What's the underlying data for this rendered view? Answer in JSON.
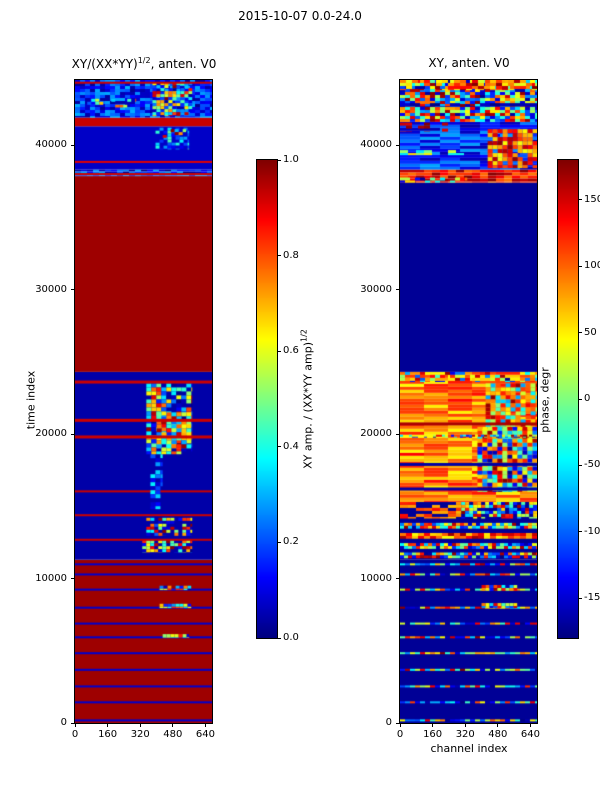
{
  "figure_title": "2015-10-07 0.0-24.0",
  "left_panel": {
    "title_base": "XY/(XX*YY)",
    "title_sup": "1/2",
    "title_rest": ", anten. V0",
    "ylabel": "time index",
    "xtick_labels": [
      "0",
      "160",
      "320",
      "480",
      "640"
    ],
    "ytick_labels": [
      "0",
      "10000",
      "20000",
      "30000",
      "40000"
    ]
  },
  "right_panel": {
    "title": "XY, anten. V0",
    "xlabel": "channel index",
    "xtick_labels": [
      "0",
      "160",
      "320",
      "480",
      "640"
    ],
    "ytick_labels": [
      "0",
      "10000",
      "20000",
      "30000",
      "40000"
    ]
  },
  "left_colorbar": {
    "label_base": "XY amp. / (XX*YY amp)",
    "label_sup": "1/2",
    "tick_labels": [
      "0.0",
      "0.2",
      "0.4",
      "0.6",
      "0.8",
      "1.0"
    ]
  },
  "right_colorbar": {
    "label": "phase, degr",
    "tick_labels": [
      "-150",
      "-100",
      "-50",
      "0",
      "50",
      "100",
      "150"
    ]
  },
  "chart_data": [
    {
      "type": "heatmap",
      "title": "XY/(XX*YY)^{1/2}, anten. V0",
      "xlabel": "",
      "ylabel": "time index",
      "colormap": "jet",
      "grid": false,
      "x_range": [
        0,
        672
      ],
      "t_range": [
        0,
        44500
      ],
      "xticks": [
        0,
        160,
        320,
        480,
        640
      ],
      "yticks": [
        0,
        10000,
        20000,
        30000,
        40000
      ],
      "value_range": [
        0.0,
        1.0
      ],
      "colorbar_label": "XY amp. / (XX*YY amp)^{1/2}",
      "colorbar_ticks": [
        0.0,
        0.2,
        0.4,
        0.6,
        0.8,
        1.0
      ],
      "seed": 11,
      "bands": [
        {
          "t0": 0,
          "t1": 11300,
          "pattern": "solid",
          "v": 0.97,
          "overlays": [
            {
              "type": "hlines",
              "times": [
                250,
                1500,
                2600,
                3750,
                4900,
                6000,
                6950,
                8050,
                9300,
                10350,
                11050
              ],
              "h": 2,
              "vmin": 0.0,
              "vmax": 0.15
            },
            {
              "type": "patch",
              "t0": 5900,
              "t1": 6150,
              "x0": 430,
              "x1": 560,
              "vmin": 0.0,
              "vmax": 1.0,
              "cw": 4,
              "ch": 3
            },
            {
              "type": "patch",
              "t0": 7950,
              "t1": 8250,
              "x0": 415,
              "x1": 570,
              "vmin": 0.0,
              "vmax": 1.0,
              "cw": 4,
              "ch": 3
            },
            {
              "type": "patch",
              "t0": 9200,
              "t1": 9500,
              "x0": 415,
              "x1": 570,
              "vmin": 0.0,
              "vmax": 1.0,
              "cw": 4,
              "ch": 3
            }
          ]
        },
        {
          "t0": 11300,
          "t1": 24300,
          "pattern": "solid",
          "v": 0.04,
          "overlays": [
            {
              "type": "patch",
              "t0": 11800,
              "t1": 12650,
              "x0": 330,
              "x1": 575,
              "vmin": 0.0,
              "vmax": 1.0,
              "cw": 4,
              "ch": 3,
              "density": 0.7
            },
            {
              "type": "patch",
              "t0": 12950,
              "t1": 14200,
              "x0": 350,
              "x1": 575,
              "vmin": 0.0,
              "vmax": 1.0,
              "cw": 4,
              "ch": 3,
              "density": 0.5
            },
            {
              "type": "hlines",
              "times": [
                12750,
                14450,
                16100
              ],
              "h": 2,
              "vmin": 0.85,
              "vmax": 1.0
            },
            {
              "type": "patch",
              "t0": 14800,
              "t1": 18600,
              "x0": 370,
              "x1": 430,
              "vmin": 0.05,
              "vmax": 0.4,
              "cw": 5,
              "ch": 4,
              "density": 0.6
            },
            {
              "type": "patch",
              "t0": 18600,
              "t1": 23500,
              "x0": 350,
              "x1": 575,
              "vmin": 0.0,
              "vmax": 1.0,
              "cw": 5,
              "ch": 4,
              "density": 0.85
            },
            {
              "type": "patch",
              "t0": 19000,
              "t1": 21500,
              "x0": 400,
              "x1": 570,
              "vmin": 0.2,
              "vmax": 1.0,
              "cw": 5,
              "ch": 4,
              "density": 0.9
            },
            {
              "type": "hlines",
              "times": [
                19900,
                21050,
                23700
              ],
              "h": 3,
              "vmin": 0.85,
              "vmax": 1.0
            }
          ]
        },
        {
          "t0": 24300,
          "t1": 37850,
          "pattern": "solid",
          "v": 0.97,
          "overlays": []
        },
        {
          "t0": 37850,
          "t1": 38300,
          "pattern": "noise",
          "vmin": 0.0,
          "vmax": 0.3,
          "cw": 6,
          "ch": 2,
          "overlays": [
            {
              "type": "hlines",
              "times": [
                38060
              ],
              "h": 2,
              "vmin": 0.85,
              "vmax": 1.0
            }
          ]
        },
        {
          "t0": 38300,
          "t1": 41300,
          "pattern": "solid",
          "v": 0.07,
          "overlays": [
            {
              "type": "patch",
              "t0": 39700,
              "t1": 41200,
              "x0": 395,
              "x1": 560,
              "vmin": 0.05,
              "vmax": 0.5,
              "cw": 4,
              "ch": 3,
              "density": 0.5
            },
            {
              "type": "patch",
              "t0": 40500,
              "t1": 41100,
              "x0": 430,
              "x1": 545,
              "vmin": 0.3,
              "vmax": 1.0,
              "cw": 4,
              "ch": 3,
              "density": 0.35
            },
            {
              "type": "hlines",
              "times": [
                38900
              ],
              "h": 2,
              "vmin": 0.8,
              "vmax": 1.0
            }
          ]
        },
        {
          "t0": 41300,
          "t1": 41900,
          "pattern": "solid",
          "v": 0.93,
          "overlays": []
        },
        {
          "t0": 41900,
          "t1": 44500,
          "pattern": "noise",
          "vmin": 0.02,
          "vmax": 0.3,
          "cw": 5,
          "ch": 3,
          "overlays": [
            {
              "type": "patch",
              "t0": 42000,
              "t1": 44350,
              "x0": 380,
              "x1": 575,
              "vmin": 0.0,
              "vmax": 1.0,
              "cw": 4,
              "ch": 3,
              "density": 0.8
            },
            {
              "type": "patch",
              "t0": 42600,
              "t1": 43200,
              "x0": 60,
              "x1": 300,
              "vmin": 0.2,
              "vmax": 0.9,
              "cw": 4,
              "ch": 3,
              "density": 0.25
            },
            {
              "type": "hlines",
              "times": [
                44380
              ],
              "h": 2,
              "vmin": 0.85,
              "vmax": 1.0
            }
          ]
        }
      ]
    },
    {
      "type": "heatmap",
      "title": "XY, anten. V0",
      "xlabel": "channel index",
      "ylabel": "",
      "colormap": "jet",
      "grid": false,
      "x_range": [
        0,
        672
      ],
      "t_range": [
        0,
        44500
      ],
      "xticks": [
        0,
        160,
        320,
        480,
        640
      ],
      "yticks": [
        0,
        10000,
        20000,
        30000,
        40000
      ],
      "value_range": [
        -180,
        180
      ],
      "colorbar_label": "phase, degr",
      "colorbar_ticks": [
        -150,
        -100,
        -50,
        0,
        50,
        100,
        150
      ],
      "seed": 22,
      "bands": [
        {
          "t0": 0,
          "t1": 11300,
          "pattern": "solid",
          "v": -172,
          "overlays": [
            {
              "type": "hlines",
              "times": [
                250,
                1500,
                2600,
                3750,
                4900,
                6000,
                6950,
                8050,
                9300,
                10350,
                11050
              ],
              "h": 2,
              "vmin": -180,
              "vmax": 180,
              "noisy": true,
              "cw": 5
            },
            {
              "type": "patch",
              "t0": 7950,
              "t1": 8300,
              "x0": 400,
              "x1": 575,
              "vmin": -180,
              "vmax": 180,
              "cw": 4,
              "ch": 3
            },
            {
              "type": "patch",
              "t0": 9150,
              "t1": 9550,
              "x0": 400,
              "x1": 575,
              "vmin": -180,
              "vmax": 180,
              "cw": 4,
              "ch": 3
            }
          ]
        },
        {
          "t0": 11300,
          "t1": 15300,
          "pattern": "solid",
          "v": -172,
          "overlays": [
            {
              "type": "patch",
              "t0": 11400,
              "t1": 11800,
              "x0": 0,
              "x1": 672,
              "vmin": -180,
              "vmax": 180,
              "cw": 4,
              "ch": 3
            },
            {
              "type": "patch",
              "t0": 12050,
              "t1": 12450,
              "x0": 0,
              "x1": 672,
              "vmin": -180,
              "vmax": 180,
              "cw": 4,
              "ch": 3
            },
            {
              "type": "patch",
              "t0": 12750,
              "t1": 13150,
              "x0": 0,
              "x1": 672,
              "vmin": 40,
              "vmax": 170,
              "cw": 6,
              "ch": 3
            },
            {
              "type": "patch",
              "t0": 13450,
              "t1": 13850,
              "x0": 0,
              "x1": 672,
              "vmin": -180,
              "vmax": 180,
              "cw": 4,
              "ch": 3
            },
            {
              "type": "patch",
              "t0": 14150,
              "t1": 15300,
              "x0": 300,
              "x1": 672,
              "vmin": -180,
              "vmax": 180,
              "cw": 4,
              "ch": 3,
              "density": 0.85
            },
            {
              "type": "patch",
              "t0": 14150,
              "t1": 15300,
              "x0": 0,
              "x1": 300,
              "vmin": 50,
              "vmax": 140,
              "cw": 8,
              "ch": 3,
              "density": 0.6
            }
          ]
        },
        {
          "t0": 15300,
          "t1": 24300,
          "pattern": "noise",
          "vmin": 45,
          "vmax": 135,
          "cw": 24,
          "ch": 3,
          "overlays": [
            {
              "type": "patch",
              "t0": 16000,
              "t1": 20500,
              "x0": 380,
              "x1": 672,
              "vmin": -180,
              "vmax": 180,
              "cw": 5,
              "ch": 4
            },
            {
              "type": "hlines",
              "times": [
                16300,
                18000
              ],
              "h": 3,
              "vmin": -175,
              "vmax": -160
            },
            {
              "type": "patch",
              "t0": 20500,
              "t1": 23500,
              "x0": 420,
              "x1": 672,
              "vmin": -80,
              "vmax": 180,
              "cw": 5,
              "ch": 4,
              "density": 0.9
            },
            {
              "type": "hlines",
              "times": [
                20800
              ],
              "h": 3,
              "vmin": 150,
              "vmax": 180
            },
            {
              "type": "patch",
              "t0": 19750,
              "t1": 19950,
              "x0": 0,
              "x1": 672,
              "vmin": -180,
              "vmax": 180,
              "cw": 3,
              "ch": 2,
              "density": 0.5
            },
            {
              "type": "patch",
              "t0": 23600,
              "t1": 24300,
              "x0": 0,
              "x1": 672,
              "vmin": -180,
              "vmax": 180,
              "cw": 5,
              "ch": 3,
              "density": 0.55
            }
          ]
        },
        {
          "t0": 24300,
          "t1": 37400,
          "pattern": "solid",
          "v": -172,
          "overlays": []
        },
        {
          "t0": 37400,
          "t1": 38300,
          "pattern": "noise",
          "vmin": 90,
          "vmax": 180,
          "cw": 8,
          "ch": 3,
          "overlays": [
            {
              "type": "patch",
              "t0": 37400,
              "t1": 37750,
              "x0": 0,
              "x1": 330,
              "vmin": -180,
              "vmax": 180,
              "cw": 5,
              "ch": 3,
              "density": 0.45
            }
          ]
        },
        {
          "t0": 38300,
          "t1": 41600,
          "pattern": "noise",
          "vmin": -168,
          "vmax": -75,
          "cw": 20,
          "ch": 3,
          "overlays": [
            {
              "type": "patch",
              "t0": 38400,
              "t1": 41100,
              "x0": 430,
              "x1": 672,
              "vmin": 40,
              "vmax": 180,
              "cw": 5,
              "ch": 4,
              "density": 0.9
            },
            {
              "type": "patch",
              "t0": 40900,
              "t1": 41550,
              "x0": 0,
              "x1": 260,
              "vmin": 90,
              "vmax": 180,
              "cw": 6,
              "ch": 3,
              "density": 0.4
            },
            {
              "type": "patch",
              "t0": 39300,
              "t1": 39650,
              "x0": 0,
              "x1": 430,
              "vmin": -60,
              "vmax": 60,
              "cw": 8,
              "ch": 3,
              "density": 0.5
            }
          ]
        },
        {
          "t0": 41600,
          "t1": 44500,
          "pattern": "noise",
          "vmin": -180,
          "vmax": 180,
          "cw": 5,
          "ch": 3,
          "overlays": [
            {
              "type": "patch",
              "t0": 43800,
              "t1": 44500,
              "x0": 0,
              "x1": 672,
              "vmin": 30,
              "vmax": 180,
              "cw": 6,
              "ch": 3,
              "density": 0.65
            },
            {
              "type": "patch",
              "t0": 42650,
              "t1": 42900,
              "x0": 0,
              "x1": 672,
              "vmin": -178,
              "vmax": -150,
              "cw": 10,
              "ch": 3,
              "density": 0.9
            }
          ]
        }
      ]
    }
  ]
}
